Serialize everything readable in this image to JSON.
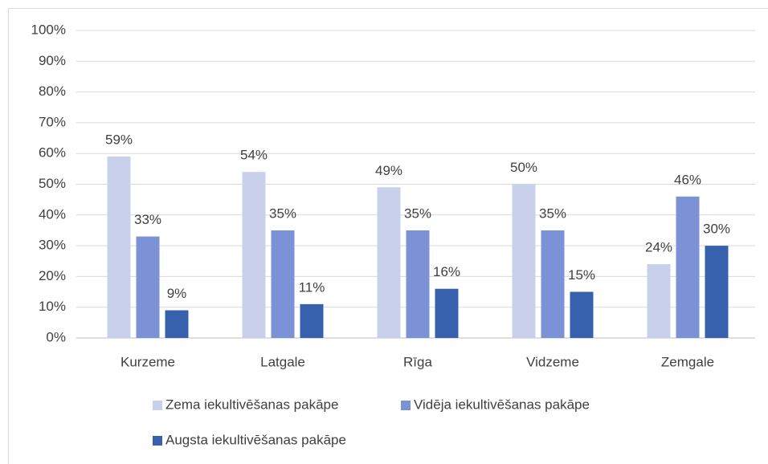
{
  "chart_data": {
    "type": "bar",
    "categories": [
      "Kurzeme",
      "Latgale",
      "Rīga",
      "Vidzeme",
      "Zemgale"
    ],
    "series": [
      {
        "name": "Zema iekultivēšanas pakāpe",
        "color": "#c9d0ec",
        "values": [
          59,
          54,
          49,
          50,
          24
        ],
        "value_labels": [
          "59%",
          "54%",
          "49%",
          "50%",
          "24%"
        ]
      },
      {
        "name": "Vidēja iekultivēšanas pakāpe",
        "color": "#7b93d6",
        "values": [
          33,
          35,
          35,
          35,
          46
        ],
        "value_labels": [
          "33%",
          "35%",
          "35%",
          "35%",
          "46%"
        ]
      },
      {
        "name": "Augsta iekultivēšanas pakāpe",
        "color": "#3761ad",
        "values": [
          9,
          11,
          16,
          15,
          30
        ],
        "value_labels": [
          "9%",
          "11%",
          "16%",
          "15%",
          "30%"
        ]
      }
    ],
    "ylim": [
      0,
      100
    ],
    "yticks": [
      {
        "value": 0,
        "label": "0%"
      },
      {
        "value": 10,
        "label": "10%"
      },
      {
        "value": 20,
        "label": "20%"
      },
      {
        "value": 30,
        "label": "30%"
      },
      {
        "value": 40,
        "label": "40%"
      },
      {
        "value": 50,
        "label": "50%"
      },
      {
        "value": 60,
        "label": "60%"
      },
      {
        "value": 70,
        "label": "70%"
      },
      {
        "value": 80,
        "label": "80%"
      },
      {
        "value": 90,
        "label": "90%"
      },
      {
        "value": 100,
        "label": "100%"
      }
    ],
    "grid": true,
    "legend": "bottom"
  }
}
